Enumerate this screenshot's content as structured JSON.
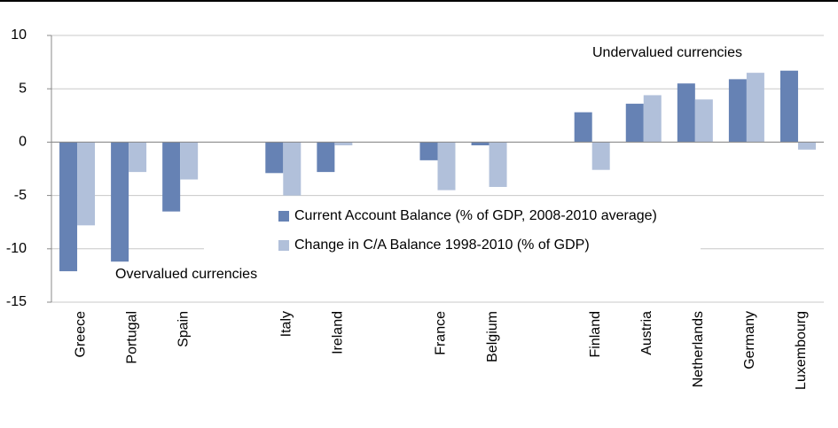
{
  "chart_data": {
    "type": "bar",
    "categories": [
      "Greece",
      "Portugal",
      "Spain",
      null,
      "Italy",
      "Ireland",
      null,
      "France",
      "Belgium",
      null,
      "Finland",
      "Austria",
      "Netherlands",
      "Germany",
      "Luxembourg"
    ],
    "series": [
      {
        "name": "Current Account Balance (% of GDP, 2008-2010 average)",
        "color": "#6682b4",
        "values": [
          -12.1,
          -11.2,
          -6.5,
          null,
          -2.9,
          -2.8,
          null,
          -1.7,
          -0.3,
          null,
          2.8,
          3.6,
          5.5,
          5.9,
          6.7
        ]
      },
      {
        "name": "Change in C/A Balance 1998-2010 (% of GDP)",
        "color": "#b1c0da",
        "values": [
          -7.8,
          -2.8,
          -3.5,
          null,
          -5.0,
          -0.3,
          null,
          -4.5,
          -4.2,
          null,
          -2.6,
          4.4,
          4.0,
          6.5,
          -0.7
        ]
      }
    ],
    "annotations": [
      "Undervalued currencies",
      "Overvalued currencies"
    ],
    "ylim": [
      -15,
      10
    ],
    "yticks": [
      -15,
      -10,
      -5,
      0,
      5,
      10
    ],
    "grid": true
  }
}
